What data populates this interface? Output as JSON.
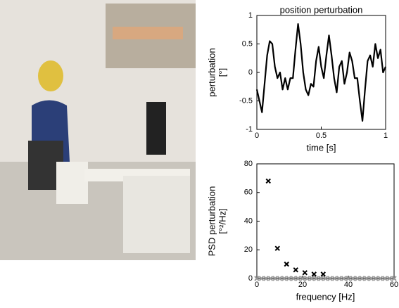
{
  "chart_data": [
    {
      "type": "line",
      "title": "position perturbation",
      "xlabel": "time [s]",
      "ylabel": [
        "perturbation",
        "[°]"
      ],
      "xlim": [
        0,
        1
      ],
      "ylim": [
        -1,
        1
      ],
      "xticks": [
        0,
        0.5,
        1
      ],
      "yticks": [
        -1,
        -0.5,
        0,
        0.5,
        1
      ],
      "x": [
        0,
        0.02,
        0.04,
        0.06,
        0.08,
        0.1,
        0.12,
        0.14,
        0.16,
        0.18,
        0.2,
        0.22,
        0.24,
        0.26,
        0.28,
        0.3,
        0.32,
        0.34,
        0.36,
        0.38,
        0.4,
        0.42,
        0.44,
        0.46,
        0.48,
        0.5,
        0.52,
        0.54,
        0.56,
        0.58,
        0.6,
        0.62,
        0.64,
        0.66,
        0.68,
        0.7,
        0.72,
        0.74,
        0.76,
        0.78,
        0.8,
        0.82,
        0.84,
        0.86,
        0.88,
        0.9,
        0.92,
        0.94,
        0.96,
        0.98,
        1
      ],
      "series": [
        {
          "color": "#000000",
          "values": [
            -0.3,
            -0.5,
            -0.7,
            -0.2,
            0.3,
            0.55,
            0.5,
            0.1,
            -0.1,
            0,
            -0.3,
            -0.1,
            -0.3,
            -0.1,
            -0.1,
            0.4,
            0.85,
            0.5,
            0,
            -0.3,
            -0.4,
            -0.2,
            -0.25,
            0.2,
            0.45,
            0.1,
            -0.1,
            0.3,
            0.65,
            0.3,
            -0.1,
            -0.35,
            0.1,
            0.2,
            -0.2,
            0,
            0.35,
            0.2,
            -0.1,
            -0.1,
            -0.5,
            -0.85,
            -0.3,
            0.2,
            0.3,
            0.1,
            0.5,
            0.25,
            0.4,
            0,
            0.1
          ]
        }
      ]
    },
    {
      "type": "scatter",
      "xlabel": "frequency [Hz]",
      "ylabel": [
        "PSD perturbation",
        "[°²/Hz]"
      ],
      "xlim": [
        0,
        60
      ],
      "ylim": [
        0,
        80
      ],
      "xticks": [
        0,
        20,
        40,
        60
      ],
      "yticks": [
        0,
        20,
        40,
        60,
        80
      ],
      "series": [
        {
          "color": "#999999",
          "x": [
            0,
            2,
            4,
            6,
            8,
            10,
            12,
            14,
            16,
            18,
            20,
            22,
            24,
            26,
            28,
            30,
            32,
            34,
            36,
            38,
            40,
            42,
            44,
            46,
            48,
            50,
            52,
            54,
            56,
            58,
            60
          ],
          "values": [
            0,
            0,
            0,
            0,
            0,
            0,
            0,
            0,
            0,
            0,
            0,
            0,
            0,
            0,
            0,
            0,
            0,
            0,
            0,
            0,
            0,
            0,
            0,
            0,
            0,
            0,
            0,
            0,
            0,
            0,
            0
          ]
        },
        {
          "color": "#000000",
          "x": [
            5,
            9,
            13,
            17,
            21,
            25,
            29
          ],
          "values": [
            68,
            21,
            10,
            6,
            4,
            3,
            3
          ]
        }
      ]
    }
  ]
}
